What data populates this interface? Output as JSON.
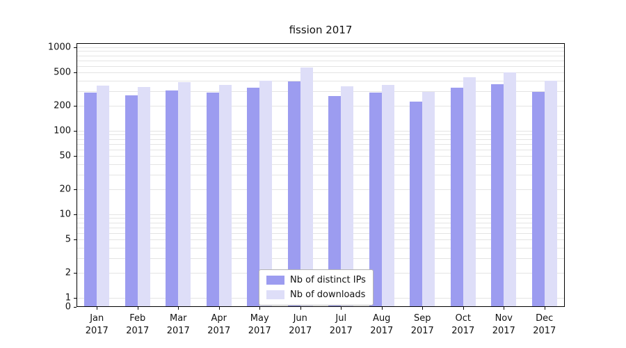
{
  "chart_data": {
    "type": "bar",
    "title": "fission 2017",
    "categories": [
      "Jan\n2017",
      "Feb\n2017",
      "Mar\n2017",
      "Apr\n2017",
      "May\n2017",
      "Jun\n2017",
      "Jul\n2017",
      "Aug\n2017",
      "Sep\n2017",
      "Oct\n2017",
      "Nov\n2017",
      "Dec\n2017"
    ],
    "series": [
      {
        "name": "Nb of distinct IPs",
        "color": "#9c9cf0",
        "values": [
          290,
          268,
          305,
          288,
          328,
          390,
          262,
          290,
          225,
          330,
          360,
          295
        ]
      },
      {
        "name": "Nb of downloads",
        "color": "#dedef8",
        "values": [
          350,
          338,
          382,
          352,
          400,
          570,
          340,
          352,
          295,
          440,
          500,
          395
        ]
      }
    ],
    "yscale": "symlog",
    "yticks": [
      0,
      1,
      2,
      5,
      10,
      20,
      50,
      100,
      200,
      500,
      1000
    ],
    "ylim": [
      0,
      1000
    ],
    "xlabel": "",
    "ylabel": "",
    "grid": "horizontal-minor-log",
    "legend_position": "lower center"
  },
  "colors": {
    "grid": "#e4e4e4",
    "axis": "#000000",
    "background": "#ffffff"
  }
}
